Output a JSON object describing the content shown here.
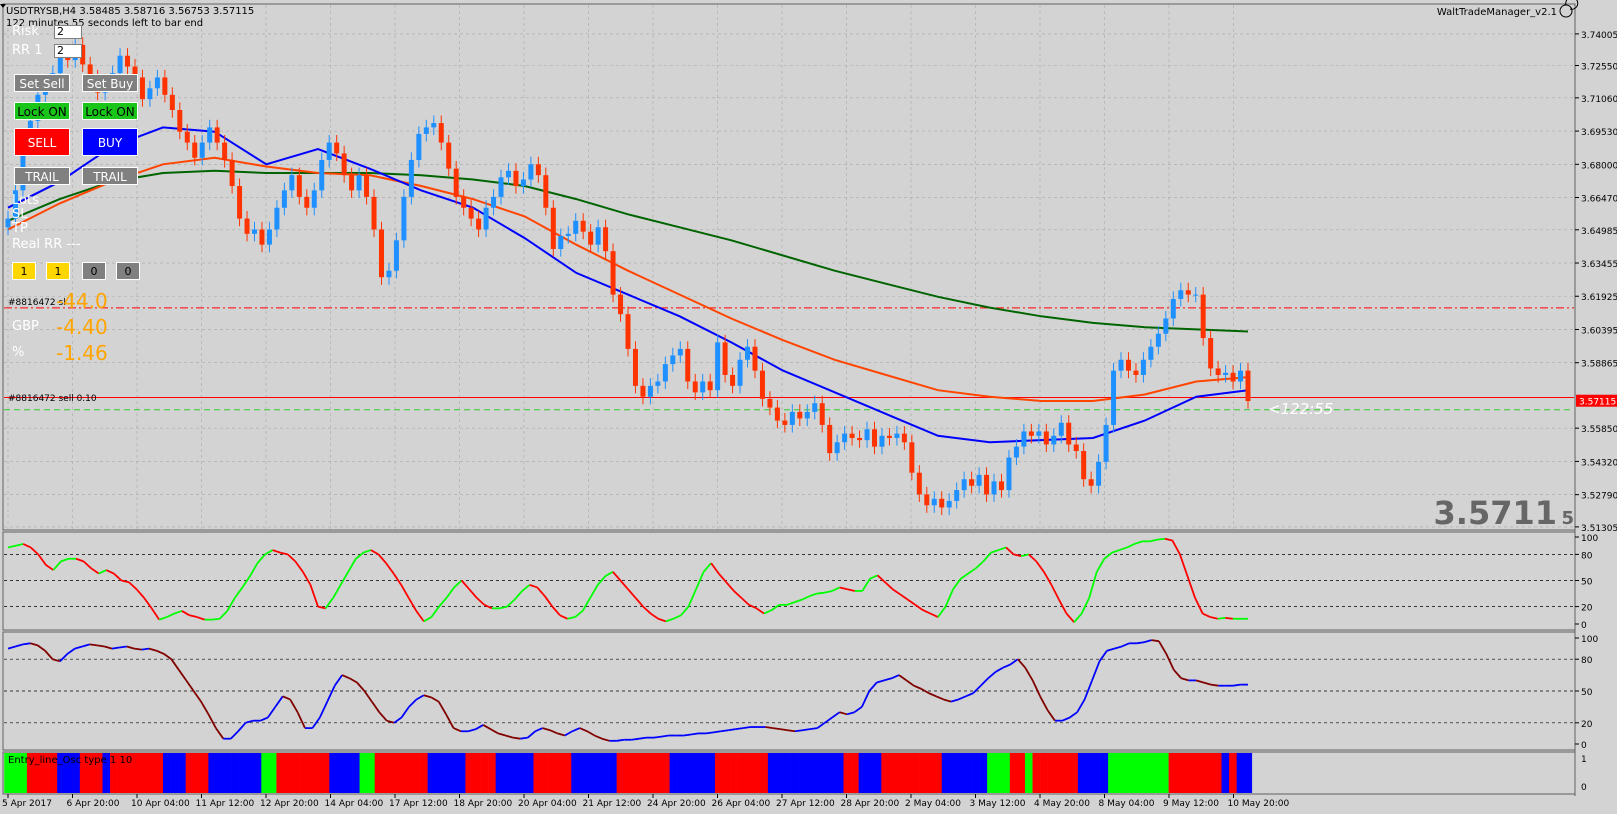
{
  "header": {
    "symbol_line": "USDTRYSB,H4  3.58485 3.58716 3.56753 3.57115",
    "countdown": "122 minutes 55 seconds left to bar end",
    "ea_name": "WaltTradeManager_v2.1"
  },
  "colors": {
    "background": "#d3d3d3",
    "grid": "#a9a9a9",
    "bull": "#1e90ff",
    "bear": "#ff3300",
    "ma_fast": "#0000ff",
    "ma_mid": "#ff4500",
    "ma_slow": "#006400",
    "sell_line": "#ff0000",
    "bid_line": "#32cd32",
    "osc_up": "#00ff00",
    "osc_down": "#ff0000",
    "osc2_up": "#0000ff",
    "osc2_down": "#800000"
  },
  "panel": {
    "risk_label": "Risk",
    "risk_value": "2",
    "rr_label": "RR 1",
    "rr_value": "2",
    "set_sell": "Set Sell",
    "set_buy": "Set Buy",
    "lock_sell": "Lock ON",
    "lock_buy": "Lock ON",
    "sell": "SELL",
    "buy": "BUY",
    "trail_sell": "TRAIL",
    "trail_buy": "TRAIL",
    "lots_label": "Lots",
    "sl_label": "SL",
    "tp_label": "TP",
    "real_rr_label": "Real RR ---",
    "squares": [
      "1",
      "1",
      "0",
      "0"
    ],
    "pl_points": "-44.0",
    "pl_currency_label": "GBP",
    "pl_currency": "-4.40",
    "pl_pct_label": "%",
    "pl_pct": "-1.46"
  },
  "main_chart": {
    "price_axis_labels": [
      "3.74005",
      "3.72550",
      "3.71060",
      "3.69530",
      "3.68000",
      "3.66470",
      "3.64985",
      "3.63455",
      "3.61925",
      "3.60395",
      "3.58865",
      "3.55850",
      "3.54320",
      "3.52790",
      "3.51305"
    ],
    "current_price": "3.57115",
    "big_price_main": "3.5711",
    "big_price_small": "5",
    "bar_timer": "<122:55",
    "sl_order_label": "#8816472 sl",
    "order_label": "#8816472 sell 0.10",
    "sl_price": 3.6139,
    "entry_price": 3.5726,
    "bid_price": 3.567
  },
  "osc1": {
    "labels": [
      "100",
      "80",
      "50",
      "20",
      "0"
    ]
  },
  "osc2": {
    "labels": [
      "100",
      "80",
      "50",
      "20",
      "0"
    ]
  },
  "histogram": {
    "label": "Entry_line_Osc type 1 10",
    "labels": [
      "1",
      "0"
    ]
  },
  "time_axis": [
    "5 Apr 2017",
    "6 Apr 20:00",
    "10 Apr 04:00",
    "11 Apr 12:00",
    "12 Apr 20:00",
    "14 Apr 04:00",
    "17 Apr 12:00",
    "18 Apr 20:00",
    "20 Apr 04:00",
    "21 Apr 12:00",
    "24 Apr 20:00",
    "26 Apr 04:00",
    "27 Apr 12:00",
    "28 Apr 20:00",
    "2 May 04:00",
    "3 May 12:00",
    "4 May 20:00",
    "8 May 04:00",
    "9 May 12:00",
    "10 May 20:00"
  ],
  "chart_data": {
    "type": "candlestick",
    "symbol": "USDTRYSB",
    "timeframe": "H4",
    "closes": [
      3.655,
      3.668,
      3.69,
      3.7,
      3.712,
      3.718,
      3.722,
      3.732,
      3.728,
      3.735,
      3.726,
      3.72,
      3.713,
      3.718,
      3.722,
      3.73,
      3.725,
      3.72,
      3.71,
      3.715,
      3.72,
      3.712,
      3.705,
      3.695,
      3.69,
      3.683,
      3.69,
      3.697,
      3.69,
      3.682,
      3.67,
      3.655,
      3.648,
      3.65,
      3.643,
      3.65,
      3.66,
      3.668,
      3.675,
      3.665,
      3.66,
      3.668,
      3.682,
      3.69,
      3.685,
      3.675,
      3.668,
      3.675,
      3.665,
      3.65,
      3.628,
      3.631,
      3.645,
      3.665,
      3.682,
      3.694,
      3.697,
      3.699,
      3.69,
      3.678,
      3.665,
      3.66,
      3.655,
      3.65,
      3.66,
      3.665,
      3.674,
      3.677,
      3.67,
      3.673,
      3.68,
      3.675,
      3.66,
      3.641,
      3.647,
      3.648,
      3.654,
      3.649,
      3.643,
      3.651,
      3.64,
      3.62,
      3.611,
      3.595,
      3.578,
      3.573,
      3.578,
      3.58,
      3.588,
      3.592,
      3.595,
      3.58,
      3.575,
      3.58,
      3.576,
      3.598,
      3.583,
      3.578,
      3.59,
      3.596,
      3.585,
      3.572,
      3.568,
      3.562,
      3.56,
      3.566,
      3.563,
      3.566,
      3.57,
      3.56,
      3.547,
      3.552,
      3.556,
      3.554,
      3.553,
      3.558,
      3.55,
      3.555,
      3.554,
      3.556,
      3.552,
      3.538,
      3.528,
      3.523,
      3.526,
      3.522,
      3.525,
      3.53,
      3.535,
      3.532,
      3.537,
      3.528,
      3.534,
      3.53,
      3.545,
      3.55,
      3.557,
      3.555,
      3.557,
      3.551,
      3.555,
      3.561,
      3.551,
      3.548,
      3.535,
      3.532,
      3.543,
      3.56,
      3.585,
      3.59,
      3.585,
      3.583,
      3.59,
      3.596,
      3.602,
      3.609,
      3.618,
      3.622,
      3.62,
      3.62,
      3.6,
      3.586,
      3.583,
      3.584,
      3.58,
      3.585,
      3.571
    ],
    "ma_fast": [
      3.66,
      3.672,
      3.688,
      3.697,
      3.695,
      3.68,
      3.687,
      3.678,
      3.668,
      3.66,
      3.646,
      3.63,
      3.62,
      3.61,
      3.598,
      3.585,
      3.575,
      3.565,
      3.555,
      3.552,
      3.553,
      3.554,
      3.562,
      3.573,
      3.576
    ],
    "ma_mid": [
      3.65,
      3.662,
      3.672,
      3.68,
      3.683,
      3.679,
      3.676,
      3.675,
      3.67,
      3.664,
      3.656,
      3.643,
      3.631,
      3.62,
      3.609,
      3.599,
      3.59,
      3.583,
      3.576,
      3.573,
      3.571,
      3.571,
      3.574,
      3.58,
      3.582
    ],
    "ma_slow": [
      3.654,
      3.664,
      3.672,
      3.676,
      3.677,
      3.676,
      3.676,
      3.676,
      3.675,
      3.673,
      3.67,
      3.664,
      3.657,
      3.651,
      3.645,
      3.638,
      3.631,
      3.625,
      3.619,
      3.614,
      3.61,
      3.607,
      3.605,
      3.604,
      3.603
    ],
    "osc1_values": [
      88,
      90,
      92,
      88,
      80,
      68,
      62,
      72,
      75,
      75,
      72,
      64,
      58,
      62,
      58,
      50,
      48,
      40,
      30,
      18,
      5,
      8,
      12,
      15,
      10,
      8,
      5,
      5,
      6,
      15,
      30,
      42,
      55,
      70,
      80,
      85,
      82,
      80,
      72,
      60,
      45,
      20,
      18,
      30,
      45,
      60,
      75,
      82,
      85,
      80,
      70,
      58,
      45,
      30,
      15,
      3,
      8,
      20,
      30,
      42,
      50,
      40,
      30,
      22,
      18,
      18,
      20,
      28,
      38,
      45,
      42,
      32,
      20,
      10,
      6,
      8,
      15,
      30,
      45,
      55,
      60,
      50,
      40,
      30,
      20,
      12,
      6,
      3,
      6,
      10,
      20,
      40,
      60,
      70,
      58,
      48,
      38,
      30,
      22,
      18,
      12,
      16,
      22,
      22,
      25,
      28,
      32,
      35,
      36,
      38,
      42,
      40,
      38,
      38,
      52,
      56,
      48,
      40,
      34,
      28,
      22,
      16,
      12,
      8,
      20,
      40,
      52,
      58,
      64,
      72,
      82,
      85,
      88,
      80,
      78,
      80,
      72,
      60,
      45,
      28,
      12,
      2,
      12,
      30,
      60,
      75,
      82,
      85,
      88,
      92,
      95,
      95,
      97,
      98,
      96,
      80,
      55,
      30,
      12,
      8,
      6,
      7,
      6,
      6,
      6
    ],
    "osc2_values": [
      90,
      92,
      94,
      95,
      93,
      88,
      80,
      78,
      85,
      90,
      92,
      94,
      93,
      92,
      90,
      91,
      92,
      90,
      89,
      90,
      88,
      85,
      80,
      70,
      60,
      50,
      40,
      28,
      15,
      5,
      5,
      12,
      20,
      22,
      22,
      25,
      35,
      45,
      42,
      30,
      15,
      15,
      25,
      40,
      55,
      65,
      62,
      58,
      50,
      40,
      30,
      22,
      20,
      25,
      35,
      42,
      46,
      44,
      40,
      28,
      15,
      12,
      12,
      14,
      18,
      14,
      10,
      8,
      6,
      5,
      6,
      12,
      15,
      13,
      10,
      8,
      12,
      15,
      12,
      8,
      5,
      3,
      3,
      4,
      4,
      5,
      6,
      6,
      7,
      8,
      8,
      8,
      9,
      10,
      10,
      11,
      12,
      13,
      14,
      15,
      16,
      16,
      16,
      15,
      14,
      13,
      12,
      13,
      14,
      15,
      20,
      25,
      30,
      28,
      30,
      35,
      50,
      58,
      60,
      62,
      65,
      60,
      55,
      52,
      48,
      45,
      42,
      40,
      42,
      45,
      48,
      55,
      62,
      68,
      72,
      75,
      80,
      72,
      60,
      45,
      32,
      22,
      22,
      25,
      30,
      42,
      60,
      78,
      88,
      90,
      92,
      95,
      95,
      96,
      98,
      97,
      85,
      70,
      62,
      60,
      60,
      58,
      56,
      55,
      55,
      55,
      56,
      56
    ]
  }
}
